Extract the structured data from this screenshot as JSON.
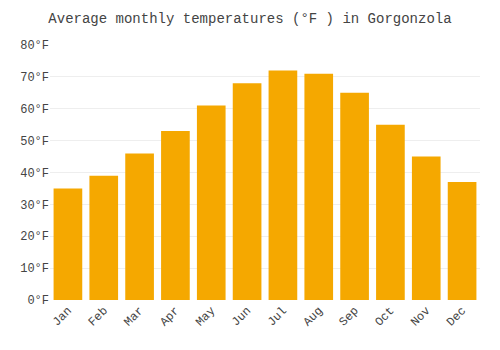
{
  "chart_data": {
    "type": "bar",
    "title": "Average monthly temperatures (°F ) in Gorgonzola",
    "categories": [
      "Jan",
      "Feb",
      "Mar",
      "Apr",
      "May",
      "Jun",
      "Jul",
      "Aug",
      "Sep",
      "Oct",
      "Nov",
      "Dec"
    ],
    "values": [
      35,
      39,
      46,
      53,
      61,
      68,
      72,
      71,
      65,
      55,
      45,
      37
    ],
    "color": "#F5A800",
    "ylim": [
      0,
      80
    ],
    "yticks": [
      {
        "value": 0,
        "label": "0°F"
      },
      {
        "value": 10,
        "label": "10°F"
      },
      {
        "value": 20,
        "label": "20°F"
      },
      {
        "value": 30,
        "label": "30°F"
      },
      {
        "value": 40,
        "label": "40°F"
      },
      {
        "value": 50,
        "label": "50°F"
      },
      {
        "value": 60,
        "label": "60°F"
      },
      {
        "value": 70,
        "label": "70°F"
      },
      {
        "value": 80,
        "label": "80°F"
      }
    ],
    "grid": true
  }
}
